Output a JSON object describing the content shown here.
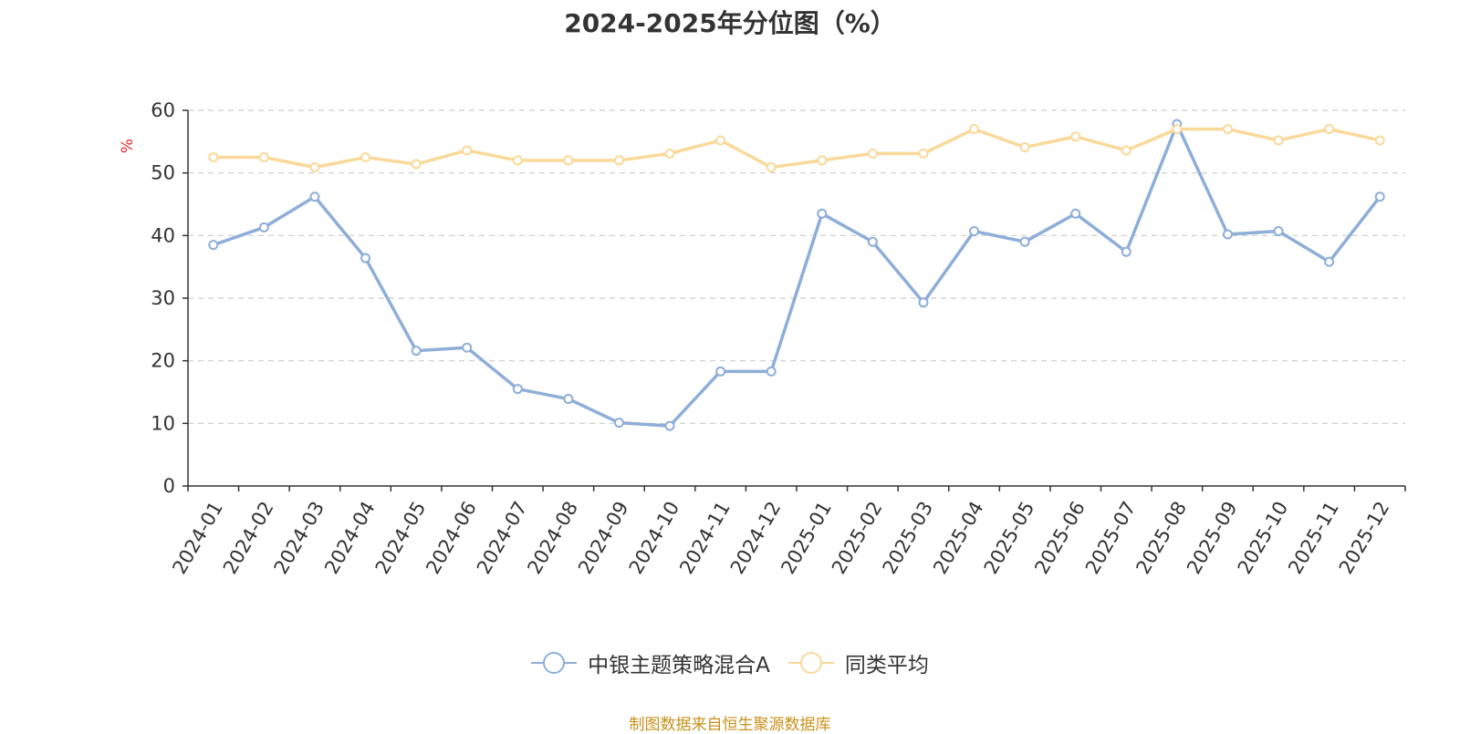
{
  "chart_data": {
    "type": "line",
    "title": "2024-2025年分位图（%）",
    "unit_label": "%",
    "categories": [
      "2024-01",
      "2024-02",
      "2024-03",
      "2024-04",
      "2024-05",
      "2024-06",
      "2024-07",
      "2024-08",
      "2024-09",
      "2024-10",
      "2024-11",
      "2024-12",
      "2025-01",
      "2025-02",
      "2025-03",
      "2025-04",
      "2025-05",
      "2025-06",
      "2025-07",
      "2025-08",
      "2025-09",
      "2025-10",
      "2025-11",
      "2025-12"
    ],
    "ylim": [
      0,
      60
    ],
    "yticks": [
      0,
      10,
      20,
      30,
      40,
      50,
      60
    ],
    "grid": true,
    "legend_position": "bottom",
    "series": [
      {
        "name": "中银主题策略混合A",
        "color": "#8eaed8",
        "values": [
          38.5,
          41.3,
          46.2,
          36.4,
          21.6,
          22.1,
          15.5,
          13.9,
          10.1,
          9.6,
          18.3,
          18.3,
          43.5,
          39.0,
          29.3,
          40.7,
          39.0,
          43.5,
          37.4,
          57.8,
          40.2,
          40.7,
          35.8,
          46.2
        ]
      },
      {
        "name": "同类平均",
        "color": "#f9d99a",
        "values": [
          52.5,
          52.5,
          50.9,
          52.5,
          51.4,
          53.6,
          52.0,
          52.0,
          52.0,
          53.1,
          55.2,
          50.9,
          52.0,
          53.1,
          53.1,
          57.0,
          54.1,
          55.8,
          53.6,
          57.0,
          57.0,
          55.2,
          57.0,
          55.2
        ]
      }
    ],
    "source": "制图数据来自恒生聚源数据库"
  }
}
